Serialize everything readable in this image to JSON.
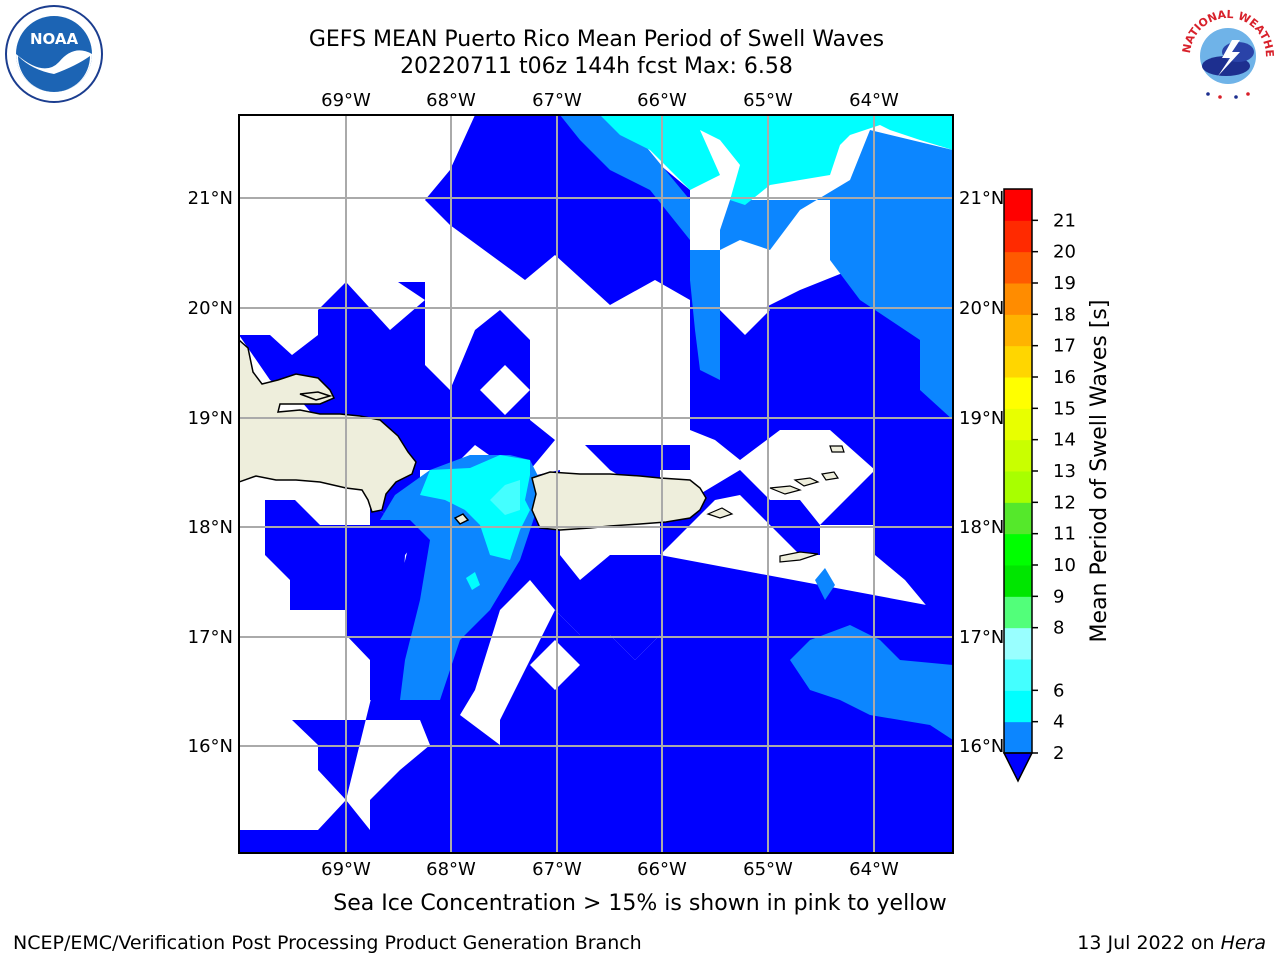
{
  "title": {
    "line1": "GEFS MEAN Puerto Rico Mean Period of Swell Waves",
    "line2": "20220711 t06z 144h fcst   Max: 6.58"
  },
  "logos": {
    "left": "noaa-logo",
    "right": "nws-logo",
    "noaa_text": "NOAA",
    "nws_text": "NATIONAL WEATHER SERVICE"
  },
  "map": {
    "lon_labels": [
      "69°W",
      "68°W",
      "67°W",
      "66°W",
      "65°W",
      "64°W"
    ],
    "lat_labels": [
      "21°N",
      "20°N",
      "19°N",
      "18°N",
      "17°N",
      "16°N"
    ],
    "lon_range": [
      -70.0,
      -63.25
    ],
    "lat_range": [
      15.0,
      21.75
    ],
    "colors": {
      "land": "#eeeedc",
      "lvl2": "#0000ff",
      "lvl4": "#0c86ff",
      "lvl6": "#00ffff",
      "lvl8": "#44ffff"
    }
  },
  "colorbar": {
    "label": "Mean Period of Swell Waves [s]",
    "ticks": [
      "2",
      "4",
      "6",
      "8",
      "9",
      "10",
      "11",
      "12",
      "13",
      "14",
      "15",
      "16",
      "17",
      "18",
      "19",
      "20",
      "21"
    ],
    "colors": [
      "#0c86ff",
      "#00ffff",
      "#44ffff",
      "#99ffff",
      "#52ff7a",
      "#00e600",
      "#00ff00",
      "#55e82b",
      "#a8ff00",
      "#c9ff00",
      "#e8ff00",
      "#ffff00",
      "#ffd600",
      "#ffb300",
      "#ff8c00",
      "#ff5a00",
      "#ff2a00",
      "#ff0000"
    ],
    "under_color": "#0000ff"
  },
  "footer": {
    "ice_note": "Sea Ice Concentration > 15% is shown in pink to yellow",
    "credit": "NCEP/EMC/Verification Post Processing Product Generation Branch",
    "date": "13 Jul 2022 on",
    "machine": "Hera"
  }
}
